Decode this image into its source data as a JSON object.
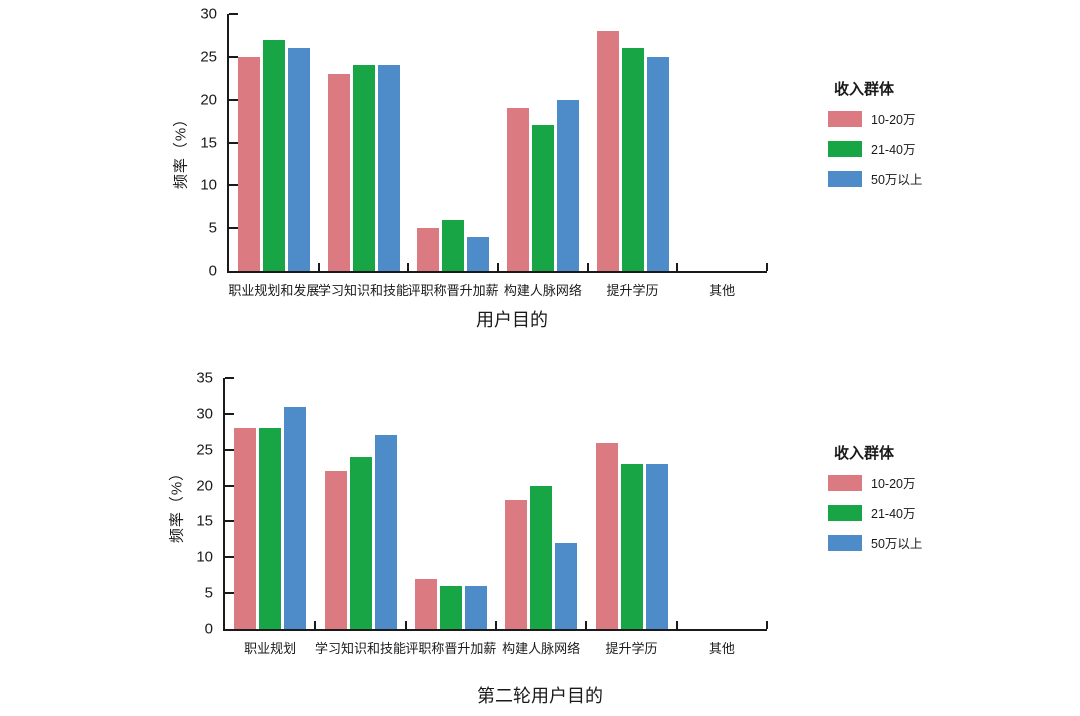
{
  "figure": {
    "background": "#ffffff",
    "text_color": "#1a1a1a",
    "axis_color": "#1a1a1a"
  },
  "chart_data": [
    {
      "type": "bar",
      "xlabel": "用户目的",
      "ylabel": "频率（%）",
      "ylim": [
        0,
        30
      ],
      "yticks": [
        0,
        5,
        10,
        15,
        20,
        25,
        30
      ],
      "grid": false,
      "legend_position": "right",
      "legend_title": "收入群体",
      "categories": [
        "职业规划和发展",
        "学习知识和技能",
        "评职称晋升加薪",
        "构建人脉网络",
        "提升学历",
        "其他"
      ],
      "series": [
        {
          "name": "10-20万",
          "color": "#DB7B81",
          "values": [
            25,
            23,
            5,
            19,
            28,
            0
          ]
        },
        {
          "name": "21-40万",
          "color": "#18A545",
          "values": [
            27,
            24,
            6,
            17,
            26,
            0
          ]
        },
        {
          "name": "50万以上",
          "color": "#4D8CC9",
          "values": [
            26,
            24,
            4,
            20,
            25,
            0
          ]
        }
      ]
    },
    {
      "type": "bar",
      "xlabel": "第二轮用户目的",
      "ylabel": "频率（%）",
      "ylim": [
        0,
        35
      ],
      "yticks": [
        0,
        5,
        10,
        15,
        20,
        25,
        30,
        35
      ],
      "grid": false,
      "legend_position": "right",
      "legend_title": "收入群体",
      "categories": [
        "职业规划",
        "学习知识和技能",
        "评职称晋升加薪",
        "构建人脉网络",
        "提升学历",
        "其他"
      ],
      "series": [
        {
          "name": "10-20万",
          "color": "#DB7B81",
          "values": [
            28,
            22,
            7,
            18,
            26,
            0
          ]
        },
        {
          "name": "21-40万",
          "color": "#18A545",
          "values": [
            28,
            24,
            6,
            20,
            23,
            0
          ]
        },
        {
          "name": "50万以上",
          "color": "#4D8CC9",
          "values": [
            31,
            27,
            6,
            12,
            23,
            0
          ]
        }
      ]
    }
  ]
}
